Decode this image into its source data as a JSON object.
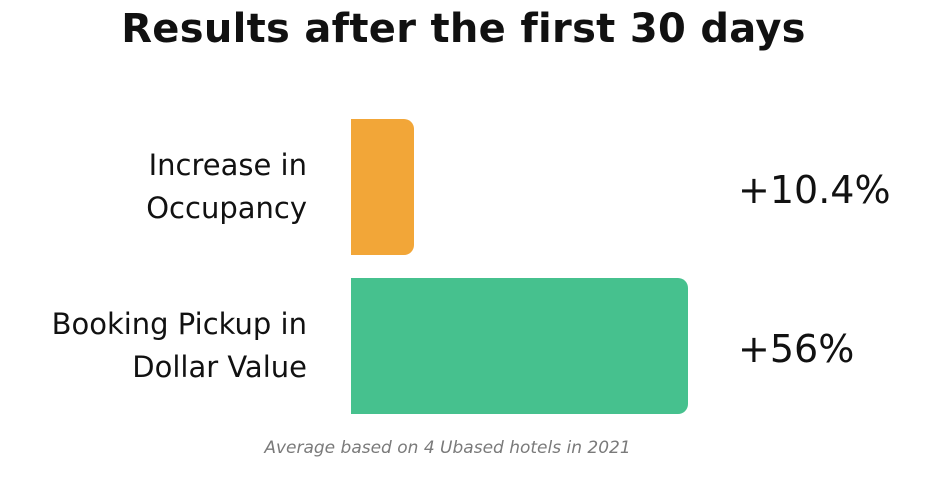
{
  "chart_data": {
    "type": "bar",
    "orientation": "horizontal",
    "title": "Results after the first 30 days",
    "categories": [
      "Increase in\nOccupancy",
      "Booking  Pickup in\nDollar Value"
    ],
    "values": [
      10.4,
      56
    ],
    "value_labels": [
      "+10.4%",
      "+56%"
    ],
    "colors": [
      "#F2A638",
      "#46C18E"
    ],
    "footnote": "Average based on 4 U​based hotels in 2021",
    "xlabel": "",
    "ylabel": "",
    "grid": false,
    "legend": "none"
  }
}
